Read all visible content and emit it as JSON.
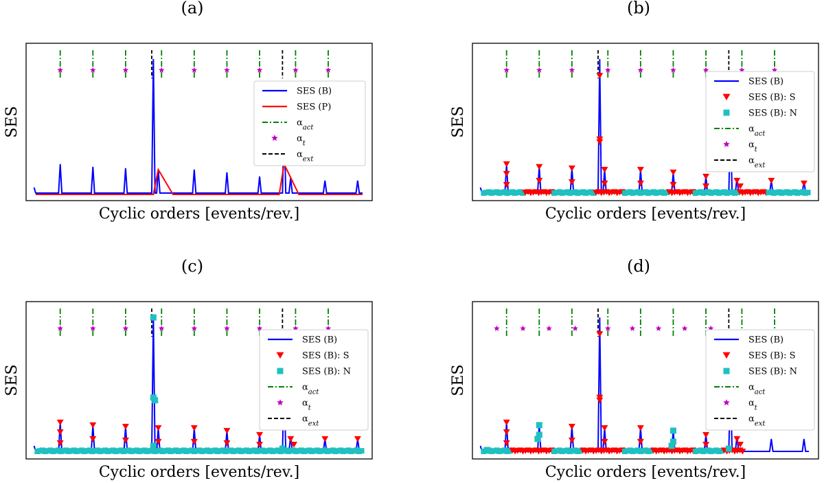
{
  "chart_data": [
    {
      "panel": "(a)",
      "type": "line",
      "xlabel": "Cyclic orders [events/rev.]",
      "ylabel": "SES",
      "xlim": [
        0,
        10
      ],
      "ylim": [
        0,
        1.05
      ],
      "act_orders": [
        0.75,
        1.75,
        2.75,
        3.85,
        4.85,
        5.85,
        6.85,
        7.95,
        8.95
      ],
      "theo_orders": [
        0.75,
        1.75,
        2.75,
        3.85,
        4.85,
        5.85,
        6.85,
        7.95,
        8.95
      ],
      "theo_level": 0.9,
      "ext_orders": [
        3.55,
        7.55
      ],
      "blue_peaks": [
        [
          0.75,
          0.22
        ],
        [
          1.75,
          0.2
        ],
        [
          2.75,
          0.19
        ],
        [
          3.6,
          0.98
        ],
        [
          3.75,
          0.18
        ],
        [
          4.85,
          0.18
        ],
        [
          5.85,
          0.16
        ],
        [
          6.85,
          0.13
        ],
        [
          7.6,
          0.55
        ],
        [
          7.8,
          0.12
        ],
        [
          8.85,
          0.1
        ],
        [
          9.85,
          0.1
        ]
      ],
      "red_peaks": [
        [
          3.75,
          0.18
        ],
        [
          7.6,
          0.22
        ]
      ],
      "markers_s": [],
      "markers_n": [],
      "legend": [
        {
          "kind": "line",
          "color": "#0000ff",
          "label": "SES (B)"
        },
        {
          "kind": "line",
          "color": "#ff0000",
          "label": "SES (P)"
        },
        {
          "kind": "dashdot",
          "color": "#008000",
          "label": "α_act"
        },
        {
          "kind": "star",
          "color": "#bf00bf",
          "label": "α_t"
        },
        {
          "kind": "dashed",
          "color": "#000000",
          "label": "α_ext"
        }
      ]
    },
    {
      "panel": "(b)",
      "type": "line",
      "xlabel": "Cyclic orders [events/rev.]",
      "ylabel": "SES",
      "xlim": [
        0,
        10
      ],
      "ylim": [
        0,
        1.05
      ],
      "act_orders": [
        0.75,
        1.75,
        2.75,
        3.85,
        4.85,
        5.85,
        6.85,
        7.95,
        8.95
      ],
      "theo_orders": [
        0.75,
        1.75,
        2.75,
        3.85,
        4.85,
        5.85,
        6.85,
        7.95,
        8.95
      ],
      "theo_level": 0.9,
      "ext_orders": [
        3.55,
        7.55
      ],
      "blue_peaks": [
        [
          0.75,
          0.22
        ],
        [
          1.75,
          0.2
        ],
        [
          2.75,
          0.19
        ],
        [
          3.6,
          0.98
        ],
        [
          3.75,
          0.18
        ],
        [
          4.85,
          0.18
        ],
        [
          5.85,
          0.16
        ],
        [
          6.85,
          0.13
        ],
        [
          7.6,
          0.55
        ],
        [
          7.8,
          0.12
        ],
        [
          8.85,
          0.1
        ],
        [
          9.85,
          0.1
        ]
      ],
      "red_peaks": [],
      "markers_s": [
        [
          0.75,
          0.22
        ],
        [
          0.75,
          0.15
        ],
        [
          0.75,
          0.07
        ],
        [
          1.75,
          0.2
        ],
        [
          1.75,
          0.1
        ],
        [
          2.75,
          0.19
        ],
        [
          2.75,
          0.09
        ],
        [
          3.6,
          0.86
        ],
        [
          3.6,
          0.4
        ],
        [
          3.6,
          0.38
        ],
        [
          3.75,
          0.18
        ],
        [
          3.75,
          0.08
        ],
        [
          4.85,
          0.18
        ],
        [
          4.85,
          0.08
        ],
        [
          5.85,
          0.16
        ],
        [
          5.85,
          0.07
        ],
        [
          6.85,
          0.13
        ],
        [
          6.85,
          0.06
        ],
        [
          7.6,
          0.55
        ],
        [
          7.6,
          0.25
        ],
        [
          7.8,
          0.1
        ],
        [
          7.9,
          0.06
        ],
        [
          8.85,
          0.1
        ],
        [
          9.85,
          0.08
        ]
      ],
      "markers_n": [],
      "band": {
        "from": 0.0,
        "to": 10.0,
        "s_every": 1,
        "n_ratio": 0.5
      },
      "legend": [
        {
          "kind": "line",
          "color": "#0000ff",
          "label": "SES (B)"
        },
        {
          "kind": "tri",
          "color": "#ff0000",
          "label": "SES (B): S"
        },
        {
          "kind": "square",
          "color": "#20c0c0",
          "label": "SES (B): N"
        },
        {
          "kind": "dashdot",
          "color": "#008000",
          "label": "α_act"
        },
        {
          "kind": "star",
          "color": "#bf00bf",
          "label": "α_t"
        },
        {
          "kind": "dashed",
          "color": "#000000",
          "label": "α_ext"
        }
      ]
    },
    {
      "panel": "(c)",
      "type": "line",
      "xlabel": "Cyclic orders [events/rev.]",
      "ylabel": "SES",
      "xlim": [
        0,
        10
      ],
      "ylim": [
        0,
        1.05
      ],
      "act_orders": [
        0.75,
        1.75,
        2.75,
        3.85,
        4.85,
        5.85,
        6.85,
        7.95,
        8.95
      ],
      "theo_orders": [
        0.75,
        1.75,
        2.75,
        3.85,
        4.85,
        5.85,
        6.85,
        7.95,
        8.95
      ],
      "theo_level": 0.9,
      "ext_orders": [
        3.55,
        7.55
      ],
      "blue_peaks": [
        [
          0.75,
          0.22
        ],
        [
          1.75,
          0.2
        ],
        [
          2.75,
          0.19
        ],
        [
          3.6,
          0.98
        ],
        [
          3.75,
          0.18
        ],
        [
          4.85,
          0.18
        ],
        [
          5.85,
          0.16
        ],
        [
          6.85,
          0.13
        ],
        [
          7.6,
          0.55
        ],
        [
          7.8,
          0.12
        ],
        [
          8.85,
          0.1
        ],
        [
          9.85,
          0.1
        ]
      ],
      "red_peaks": [],
      "markers_s": [
        [
          0.75,
          0.22
        ],
        [
          0.75,
          0.15
        ],
        [
          0.75,
          0.07
        ],
        [
          1.75,
          0.2
        ],
        [
          1.75,
          0.1
        ],
        [
          2.75,
          0.19
        ],
        [
          2.75,
          0.09
        ],
        [
          3.75,
          0.18
        ],
        [
          3.75,
          0.08
        ],
        [
          4.85,
          0.18
        ],
        [
          4.85,
          0.08
        ],
        [
          5.85,
          0.16
        ],
        [
          5.85,
          0.07
        ],
        [
          6.85,
          0.13
        ],
        [
          6.85,
          0.06
        ],
        [
          7.8,
          0.1
        ],
        [
          7.9,
          0.06
        ],
        [
          8.85,
          0.1
        ],
        [
          9.85,
          0.1
        ]
      ],
      "markers_n": [
        [
          3.6,
          0.98
        ],
        [
          3.6,
          0.4
        ],
        [
          3.65,
          0.38
        ],
        [
          7.6,
          0.55
        ],
        [
          7.6,
          0.25
        ],
        [
          3.6,
          0.05
        ],
        [
          7.55,
          0.03
        ]
      ],
      "band": {
        "from": 0.0,
        "to": 10.0,
        "s_every": 0,
        "n_ratio": 1.0
      },
      "legend": [
        {
          "kind": "line",
          "color": "#0000ff",
          "label": "SES (B)"
        },
        {
          "kind": "tri",
          "color": "#ff0000",
          "label": "SES (B): S"
        },
        {
          "kind": "square",
          "color": "#20c0c0",
          "label": "SES (B): N"
        },
        {
          "kind": "dashdot",
          "color": "#008000",
          "label": "α_act"
        },
        {
          "kind": "star",
          "color": "#bf00bf",
          "label": "α_t"
        },
        {
          "kind": "dashed",
          "color": "#000000",
          "label": "α_ext"
        }
      ]
    },
    {
      "panel": "(d)",
      "type": "line",
      "xlabel": "Cyclic orders [events/rev.]",
      "ylabel": "SES",
      "xlim": [
        0,
        10
      ],
      "ylim": [
        0,
        1.05
      ],
      "act_orders": [
        0.75,
        1.75,
        2.75,
        3.85,
        4.85,
        5.85,
        6.85,
        7.95,
        8.95
      ],
      "theo_orders": [
        0.45,
        1.25,
        2.05,
        2.85,
        3.85,
        4.6,
        5.4,
        6.2,
        7.0
      ],
      "theo_level": 0.9,
      "ext_orders": [
        3.55,
        7.55
      ],
      "blue_peaks": [
        [
          0.75,
          0.22
        ],
        [
          1.75,
          0.2
        ],
        [
          2.75,
          0.19
        ],
        [
          3.6,
          0.98
        ],
        [
          3.75,
          0.18
        ],
        [
          4.85,
          0.18
        ],
        [
          5.85,
          0.16
        ],
        [
          6.85,
          0.13
        ],
        [
          7.6,
          0.55
        ],
        [
          7.8,
          0.12
        ],
        [
          8.85,
          0.1
        ],
        [
          9.85,
          0.1
        ]
      ],
      "red_peaks": [],
      "markers_s": [
        [
          0.75,
          0.22
        ],
        [
          0.75,
          0.15
        ],
        [
          0.75,
          0.07
        ],
        [
          2.75,
          0.19
        ],
        [
          2.75,
          0.09
        ],
        [
          3.6,
          0.86
        ],
        [
          3.6,
          0.4
        ],
        [
          3.6,
          0.38
        ],
        [
          3.75,
          0.18
        ],
        [
          3.75,
          0.08
        ],
        [
          4.85,
          0.18
        ],
        [
          4.85,
          0.08
        ],
        [
          6.85,
          0.13
        ],
        [
          6.85,
          0.06
        ],
        [
          7.6,
          0.55
        ],
        [
          7.6,
          0.25
        ],
        [
          7.8,
          0.1
        ],
        [
          7.9,
          0.06
        ]
      ],
      "markers_n": [
        [
          1.75,
          0.2
        ],
        [
          1.75,
          0.13
        ],
        [
          1.7,
          0.1
        ],
        [
          5.85,
          0.16
        ],
        [
          5.85,
          0.08
        ],
        [
          5.8,
          0.05
        ],
        [
          0.15,
          0.02
        ],
        [
          7.55,
          0.03
        ]
      ],
      "band": {
        "from": 0.0,
        "to": 8.0,
        "s_every": 1,
        "n_ratio": 0.4
      },
      "legend": [
        {
          "kind": "line",
          "color": "#0000ff",
          "label": "SES (B)"
        },
        {
          "kind": "tri",
          "color": "#ff0000",
          "label": "SES (B): S"
        },
        {
          "kind": "square",
          "color": "#20c0c0",
          "label": "SES (B): N"
        },
        {
          "kind": "dashdot",
          "color": "#008000",
          "label": "α_act"
        },
        {
          "kind": "star",
          "color": "#bf00bf",
          "label": "α_t"
        },
        {
          "kind": "dashed",
          "color": "#000000",
          "label": "α_ext"
        }
      ]
    }
  ]
}
